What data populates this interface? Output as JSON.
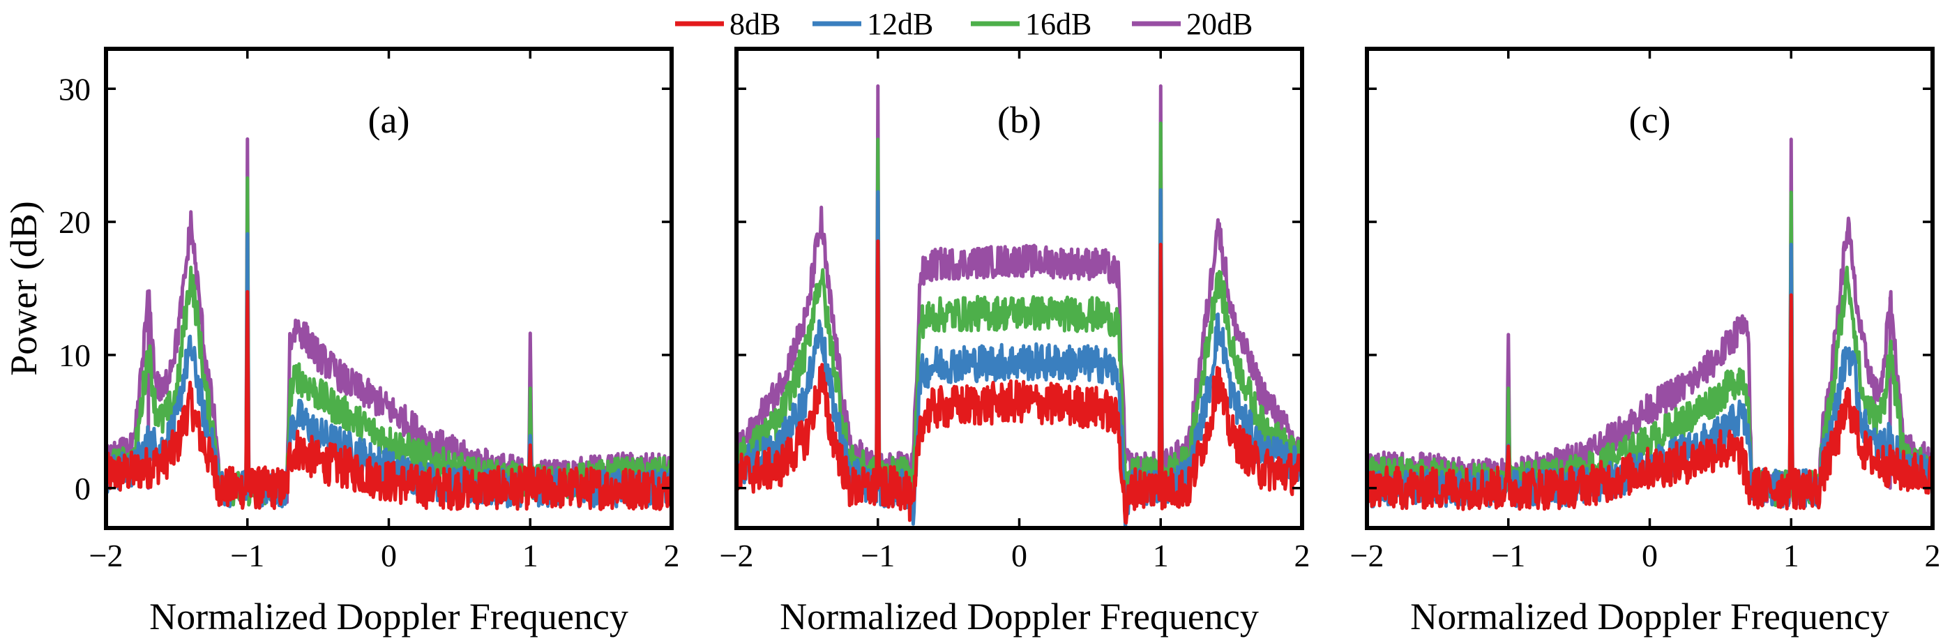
{
  "chart_data": [
    {
      "type": "line",
      "panel_label": "(a)",
      "xlabel": "Normalized Doppler Frequency",
      "ylabel": "Power (dB)",
      "xlim": [
        -2,
        2
      ],
      "ylim": [
        -3,
        33
      ],
      "xticks": [
        -2,
        -1,
        0,
        1,
        2
      ],
      "xtick_labels": [
        "−2",
        "−1",
        "0",
        "1",
        "2"
      ],
      "yticks": [
        0,
        10,
        20,
        30
      ],
      "ytick_labels": [
        "0",
        "10",
        "20",
        "30"
      ],
      "series": [
        {
          "name": "8dB",
          "color": "#e31a1c",
          "x": [
            -2,
            -1.8,
            -1.6,
            -1.5,
            -1.45,
            -1.4,
            -1.35,
            -1.3,
            -1.22,
            -1.2,
            -1.1,
            -1.01,
            -1.0,
            -0.99,
            -0.9,
            -0.8,
            -0.72,
            -0.7,
            -0.65,
            -0.5,
            -0.3,
            0,
            0.3,
            0.6,
            0.99,
            1.0,
            1.01,
            1.3,
            1.6,
            2
          ],
          "y": [
            1,
            1.2,
            2,
            3,
            5,
            6.5,
            4.5,
            3,
            1,
            0,
            0,
            0,
            14.5,
            0,
            0,
            0,
            0,
            2.5,
            3,
            2,
            1.5,
            0.5,
            0,
            0,
            0,
            2,
            0,
            0,
            0,
            0
          ]
        },
        {
          "name": "12dB",
          "color": "#3a7fbf",
          "x": [
            -2,
            -1.8,
            -1.7,
            -1.6,
            -1.5,
            -1.45,
            -1.4,
            -1.35,
            -1.3,
            -1.22,
            -1.2,
            -1.1,
            -1.01,
            -1.0,
            -0.99,
            -0.9,
            -0.8,
            -0.72,
            -0.7,
            -0.65,
            -0.5,
            -0.3,
            0,
            0.3,
            0.6,
            0.99,
            1.0,
            1.01,
            1.3,
            1.6,
            2
          ],
          "y": [
            1,
            1.5,
            3.5,
            3,
            5,
            8.5,
            10.5,
            8,
            5,
            2,
            0,
            0,
            0,
            18.3,
            0,
            0,
            0,
            0,
            4,
            5.5,
            4,
            3,
            1.5,
            0.5,
            0,
            0,
            4.5,
            0,
            0,
            0,
            0
          ]
        },
        {
          "name": "16dB",
          "color": "#4daf4a",
          "x": [
            -2,
            -1.8,
            -1.7,
            -1.65,
            -1.6,
            -1.5,
            -1.45,
            -1.4,
            -1.35,
            -1.3,
            -1.22,
            -1.2,
            -1.1,
            -1.01,
            -1.0,
            -0.99,
            -0.9,
            -0.8,
            -0.72,
            -0.7,
            -0.65,
            -0.5,
            -0.3,
            0,
            0.3,
            0.6,
            0.99,
            1.0,
            1.01,
            1.3,
            1.6,
            2
          ],
          "y": [
            1.5,
            2,
            10.5,
            6,
            5,
            7,
            12,
            16,
            12.5,
            7.5,
            3,
            0,
            0,
            0,
            22.2,
            0,
            0,
            0,
            0,
            7,
            8.5,
            7,
            5.5,
            3.5,
            2,
            1,
            0.5,
            7.5,
            0.5,
            0.5,
            1,
            1
          ]
        },
        {
          "name": "20dB",
          "color": "#984ea3",
          "x": [
            -2,
            -1.8,
            -1.7,
            -1.65,
            -1.6,
            -1.5,
            -1.45,
            -1.4,
            -1.35,
            -1.3,
            -1.22,
            -1.2,
            -1.1,
            -1.01,
            -1.0,
            -0.99,
            -0.9,
            -0.8,
            -0.72,
            -0.7,
            -0.65,
            -0.5,
            -0.3,
            0,
            0.3,
            0.6,
            0.99,
            1.0,
            1.01,
            1.3,
            1.6,
            2
          ],
          "y": [
            2,
            3,
            14.3,
            8,
            7,
            11,
            15,
            20,
            15,
            10,
            4,
            0,
            0,
            0,
            26.2,
            0,
            0,
            0,
            0,
            11,
            12.2,
            10,
            8,
            6,
            3.5,
            2,
            1,
            11.2,
            1,
            1,
            1.5,
            1.5
          ]
        }
      ]
    },
    {
      "type": "line",
      "panel_label": "(b)",
      "xlabel": "Normalized Doppler Frequency",
      "ylabel": "",
      "xlim": [
        -2,
        2
      ],
      "ylim": [
        -3,
        33
      ],
      "xticks": [
        -2,
        -1,
        0,
        1,
        2
      ],
      "xtick_labels": [
        "−2",
        "−1",
        "0",
        "1",
        "2"
      ],
      "yticks": [
        0,
        10,
        20,
        30
      ],
      "ytick_labels": [],
      "series": [
        {
          "name": "8dB",
          "color": "#e31a1c",
          "x": [
            -2,
            -1.7,
            -1.5,
            -1.45,
            -1.4,
            -1.35,
            -1.2,
            -1.01,
            -1.0,
            -0.99,
            -0.8,
            -0.75,
            -0.7,
            -0.6,
            0,
            0.6,
            0.7,
            0.75,
            0.8,
            0.99,
            1.0,
            1.01,
            1.2,
            1.35,
            1.4,
            1.45,
            1.5,
            1.7,
            2
          ],
          "y": [
            1,
            1.5,
            4,
            6,
            8.5,
            5,
            0,
            0,
            18.3,
            0,
            0,
            -2,
            5,
            6,
            6.5,
            6,
            5,
            -2,
            0,
            0,
            18.3,
            0,
            0,
            5,
            8.5,
            6,
            4,
            1.5,
            1
          ]
        },
        {
          "name": "12dB",
          "color": "#3a7fbf",
          "x": [
            -2,
            -1.7,
            -1.5,
            -1.45,
            -1.4,
            -1.35,
            -1.2,
            -1.01,
            -1.0,
            -0.99,
            -0.8,
            -0.75,
            -0.7,
            -0.6,
            0,
            0.6,
            0.7,
            0.75,
            0.8,
            0.99,
            1.0,
            1.01,
            1.2,
            1.35,
            1.4,
            1.45,
            1.5,
            1.7,
            2
          ],
          "y": [
            1.5,
            3,
            7,
            10.5,
            12,
            8,
            1,
            0,
            22.2,
            0,
            0,
            -2,
            8.5,
            9.3,
            9.5,
            9.3,
            8.5,
            -2,
            0,
            0,
            22.2,
            0,
            1,
            8,
            12,
            10.5,
            7,
            3,
            1.5
          ]
        },
        {
          "name": "16dB",
          "color": "#4daf4a",
          "x": [
            -2,
            -1.7,
            -1.5,
            -1.45,
            -1.4,
            -1.35,
            -1.2,
            -1.01,
            -1.0,
            -0.99,
            -0.8,
            -0.75,
            -0.7,
            -0.6,
            0,
            0.6,
            0.7,
            0.75,
            0.8,
            0.99,
            1.0,
            1.01,
            1.2,
            1.35,
            1.4,
            1.45,
            1.5,
            1.7,
            2
          ],
          "y": [
            2,
            5,
            10.5,
            14,
            16,
            12,
            2,
            1,
            26.2,
            1,
            1,
            0,
            12.5,
            13,
            13.2,
            13,
            12.5,
            0,
            1,
            1,
            26.2,
            1,
            2,
            12,
            16,
            14,
            10.5,
            5,
            2
          ]
        },
        {
          "name": "20dB",
          "color": "#984ea3",
          "x": [
            -2,
            -1.7,
            -1.5,
            -1.45,
            -1.4,
            -1.35,
            -1.2,
            -1.01,
            -1.0,
            -0.99,
            -0.8,
            -0.75,
            -0.7,
            -0.6,
            0,
            0.6,
            0.7,
            0.75,
            0.8,
            0.99,
            1.0,
            1.01,
            1.2,
            1.35,
            1.4,
            1.45,
            1.5,
            1.7,
            2
          ],
          "y": [
            2.5,
            7.5,
            13,
            17,
            20,
            15,
            3,
            1.5,
            30.2,
            1.5,
            1.5,
            2,
            16,
            16.8,
            17.1,
            16.8,
            16,
            2,
            1.5,
            1.5,
            30.2,
            1.5,
            3,
            15,
            20,
            17,
            13,
            7.5,
            2.5
          ]
        }
      ]
    },
    {
      "type": "line",
      "panel_label": "(c)",
      "xlabel": "Normalized Doppler Frequency",
      "ylabel": "",
      "xlim": [
        -2,
        2
      ],
      "ylim": [
        -3,
        33
      ],
      "xticks": [
        -2,
        -1,
        0,
        1,
        2
      ],
      "xtick_labels": [
        "−2",
        "−1",
        "0",
        "1",
        "2"
      ],
      "yticks": [
        0,
        10,
        20,
        30
      ],
      "ytick_labels": [],
      "series": [
        {
          "name": "8dB",
          "color": "#e31a1c",
          "x": [
            -2,
            -1.6,
            -1.3,
            -1.01,
            -1.0,
            -0.99,
            -0.6,
            -0.3,
            0,
            0.3,
            0.5,
            0.65,
            0.7,
            0.72,
            0.8,
            0.9,
            0.99,
            1.0,
            1.01,
            1.1,
            1.2,
            1.22,
            1.3,
            1.35,
            1.4,
            1.45,
            1.5,
            1.6,
            1.8,
            2
          ],
          "y": [
            0,
            0,
            0,
            0,
            2,
            0,
            0,
            0.5,
            1.5,
            2,
            3,
            2.5,
            0,
            0,
            0,
            0,
            0,
            14.5,
            0,
            0,
            0,
            1,
            3,
            4.5,
            6.5,
            5,
            3,
            2,
            1.2,
            1
          ]
        },
        {
          "name": "12dB",
          "color": "#3a7fbf",
          "x": [
            -2,
            -1.6,
            -1.3,
            -1.01,
            -1.0,
            -0.99,
            -0.6,
            -0.3,
            0,
            0.3,
            0.5,
            0.65,
            0.7,
            0.72,
            0.8,
            0.9,
            0.99,
            1.0,
            1.01,
            1.1,
            1.2,
            1.22,
            1.3,
            1.35,
            1.4,
            1.45,
            1.5,
            1.6,
            1.7,
            1.8,
            2
          ],
          "y": [
            0,
            0,
            0,
            0,
            4.5,
            0,
            0,
            0.5,
            1.5,
            3,
            4,
            5.5,
            4,
            0,
            0,
            0,
            0,
            18.3,
            0,
            0,
            0,
            2,
            5,
            8,
            10.5,
            8.5,
            5,
            3,
            3.5,
            1.5,
            1
          ]
        },
        {
          "name": "16dB",
          "color": "#4daf4a",
          "x": [
            -2,
            -1.6,
            -1.3,
            -1.01,
            -1.0,
            -0.99,
            -0.6,
            -0.3,
            0,
            0.3,
            0.5,
            0.65,
            0.7,
            0.72,
            0.8,
            0.9,
            0.99,
            1.0,
            1.01,
            1.1,
            1.2,
            1.22,
            1.3,
            1.35,
            1.4,
            1.45,
            1.5,
            1.6,
            1.65,
            1.7,
            1.8,
            2
          ],
          "y": [
            1,
            1,
            0.5,
            0.5,
            7.5,
            0.5,
            1,
            2,
            3.5,
            5.5,
            7,
            8.5,
            7,
            0,
            0,
            0,
            0,
            22.2,
            0,
            0,
            0,
            3,
            7.5,
            12.5,
            16,
            12,
            7,
            5,
            6,
            10.5,
            2,
            1.5
          ]
        },
        {
          "name": "20dB",
          "color": "#984ea3",
          "x": [
            -2,
            -1.6,
            -1.3,
            -1.01,
            -1.0,
            -0.99,
            -0.6,
            -0.3,
            0,
            0.3,
            0.5,
            0.65,
            0.7,
            0.72,
            0.8,
            0.9,
            0.99,
            1.0,
            1.01,
            1.1,
            1.2,
            1.22,
            1.3,
            1.35,
            1.4,
            1.45,
            1.5,
            1.6,
            1.65,
            1.7,
            1.8,
            2
          ],
          "y": [
            1.5,
            1.5,
            1,
            1,
            11.2,
            1,
            2,
            3.5,
            6,
            8,
            10,
            12.2,
            11,
            0,
            0,
            0,
            0,
            26.2,
            0,
            0,
            0,
            4,
            10,
            15,
            20,
            15,
            11,
            7,
            8,
            14.3,
            3,
            2
          ]
        }
      ]
    }
  ],
  "legend": {
    "placement": "top-center",
    "entries": [
      {
        "label": "8dB",
        "color": "#e31a1c"
      },
      {
        "label": "12dB",
        "color": "#3a7fbf"
      },
      {
        "label": "16dB",
        "color": "#4daf4a"
      },
      {
        "label": "20dB",
        "color": "#984ea3"
      }
    ]
  }
}
